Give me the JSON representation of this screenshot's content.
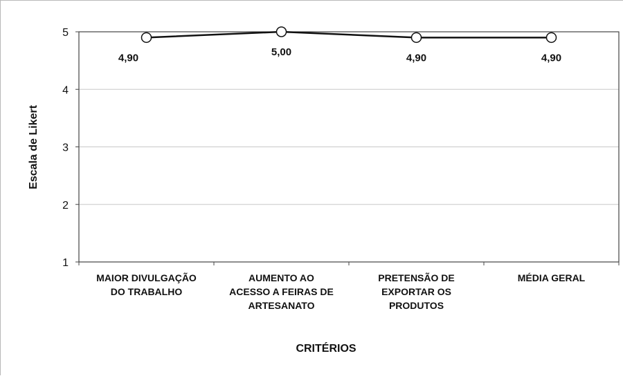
{
  "chart_data": {
    "type": "line",
    "categories": [
      [
        "MAIOR DIVULGAÇÃO",
        "DO TRABALHO"
      ],
      [
        "AUMENTO AO",
        "ACESSO A FEIRAS DE",
        "ARTESANATO"
      ],
      [
        "PRETENSÃO DE",
        "EXPORTAR OS",
        "PRODUTOS"
      ],
      [
        "MÉDIA GERAL"
      ]
    ],
    "values": [
      4.9,
      5.0,
      4.9,
      4.9
    ],
    "data_labels": [
      "4,90",
      "5,00",
      "4,90",
      "4,90"
    ],
    "xlabel": "CRITÉRIOS",
    "ylabel": "Escala de Likert",
    "ylim": [
      1,
      5
    ],
    "yticks": [
      "1",
      "2",
      "3",
      "4",
      "5"
    ],
    "grid": true,
    "line_color": "#111111",
    "marker_fill": "#ffffff"
  }
}
